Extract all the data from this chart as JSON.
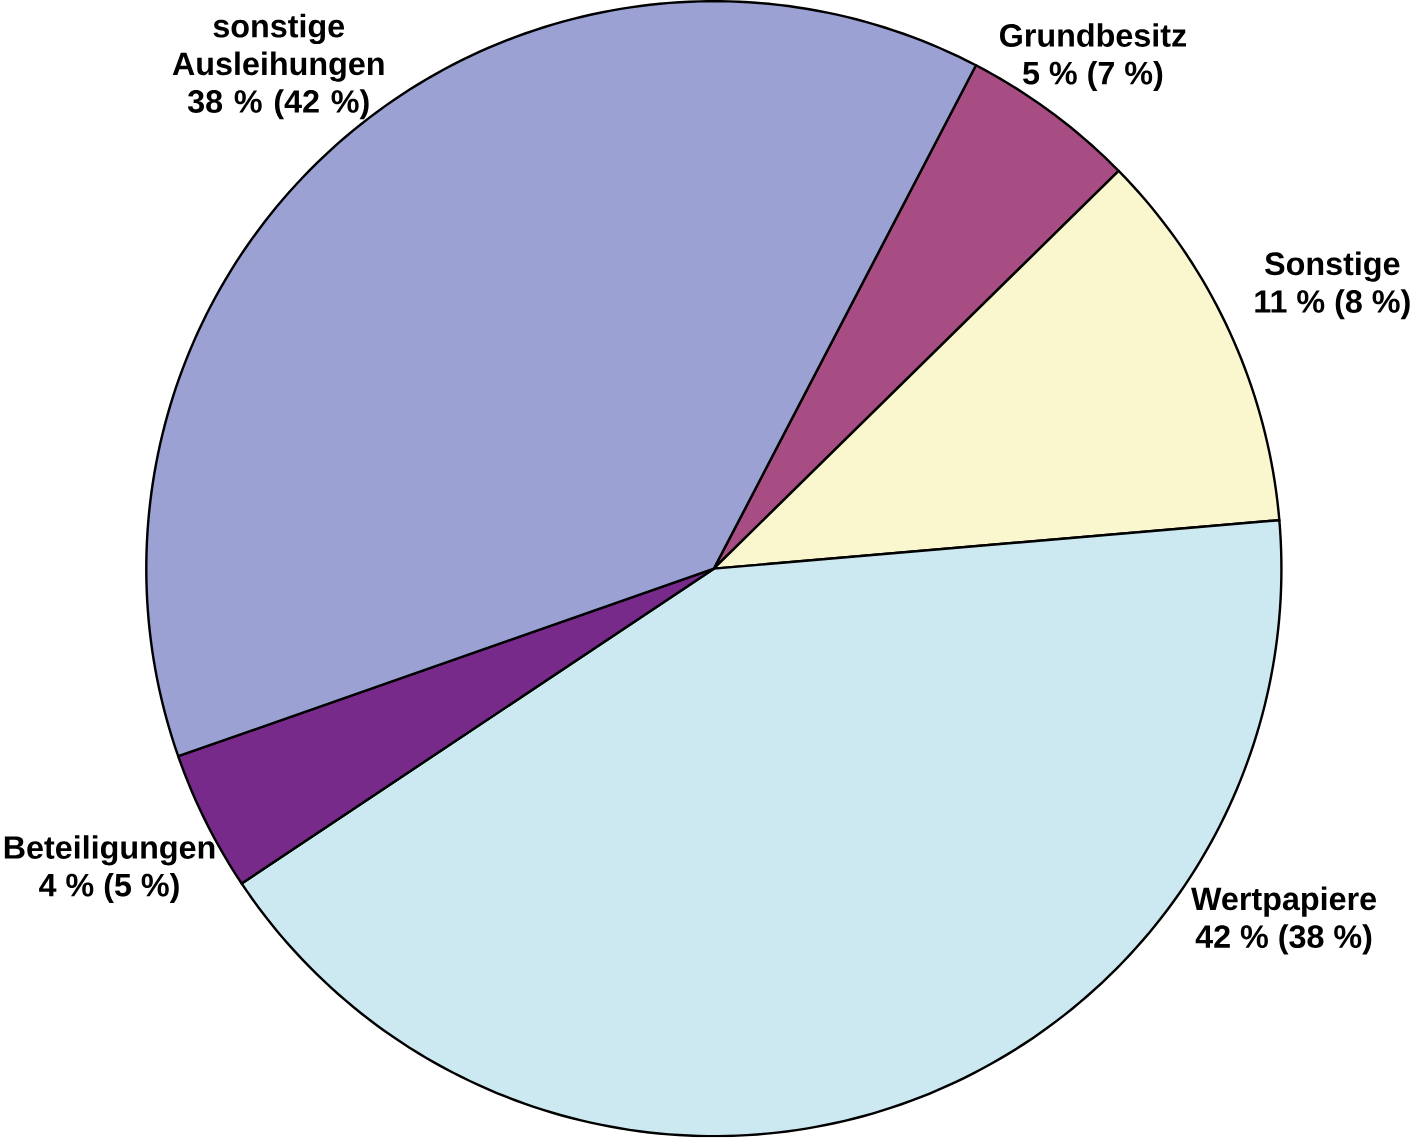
{
  "chart_data": {
    "type": "pie",
    "categories": [
      "Grundbesitz",
      "Sonstige",
      "Wertpapiere",
      "Beteiligungen",
      "sonstige Ausleihungen"
    ],
    "values": [
      5,
      11,
      42,
      4,
      38
    ],
    "value_labels": [
      "5 % (7 %)",
      "11 % (8 %)",
      "42 % (38 %)",
      "4 % (5 %)",
      "38 % (42 %)"
    ],
    "colors": [
      "#a84c84",
      "#faf7cf",
      "#cce9f1",
      "#782a8a",
      "#9ba2d3"
    ]
  }
}
